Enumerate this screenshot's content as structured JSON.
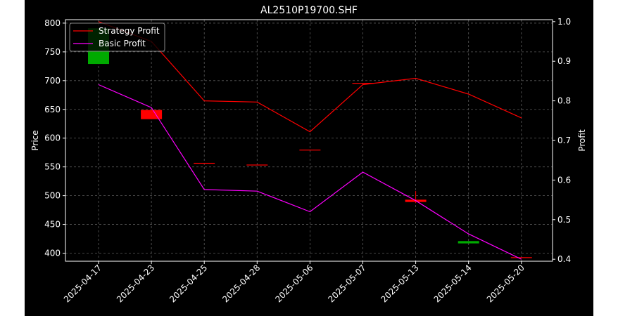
{
  "chart_data": {
    "type": "line",
    "title": "AL2510P19700.SHF",
    "xlabel": "",
    "ylabel": "Price",
    "y2label": "Profit",
    "categories": [
      "2025-04-17",
      "2025-04-23",
      "2025-04-25",
      "2025-04-28",
      "2025-05-06",
      "2025-05-07",
      "2025-05-13",
      "2025-05-14",
      "2025-05-20"
    ],
    "ylim": [
      386,
      806
    ],
    "y2lim": [
      0.395,
      1.005
    ],
    "yticks": [
      400,
      450,
      500,
      550,
      600,
      650,
      700,
      750,
      800
    ],
    "y2ticks": [
      "0.4",
      "0.5",
      "0.6",
      "0.7",
      "0.8",
      "0.9",
      "1.0"
    ],
    "grid": true,
    "legend_position": "top-left",
    "candles": [
      {
        "date": "2025-04-17",
        "open": 729,
        "close": 791,
        "high": 791,
        "low": 729,
        "color": "#00aa00"
      },
      {
        "date": "2025-04-23",
        "open": 649,
        "close": 633,
        "high": 649,
        "low": 633,
        "color": "#ff0000"
      },
      {
        "date": "2025-04-25",
        "open": 557,
        "close": 557,
        "high": 557,
        "low": 557,
        "color": "#ff0000"
      },
      {
        "date": "2025-04-28",
        "open": 554,
        "close": 554,
        "high": 554,
        "low": 554,
        "color": "#ff0000"
      },
      {
        "date": "2025-05-06",
        "open": 580,
        "close": 580,
        "high": 580,
        "low": 580,
        "color": "#ff0000"
      },
      {
        "date": "2025-05-07",
        "open": 696,
        "close": 696,
        "high": 696,
        "low": 696,
        "color": "#ff0000"
      },
      {
        "date": "2025-05-13",
        "open": 493,
        "close": 489,
        "high": 508,
        "low": 487,
        "color": "#ff0000"
      },
      {
        "date": "2025-05-14",
        "open": 417,
        "close": 421,
        "high": 421,
        "low": 417,
        "color": "#00aa00"
      },
      {
        "date": "2025-05-20",
        "open": 393,
        "close": 393,
        "high": 393,
        "low": 393,
        "color": "#ff0000"
      }
    ],
    "series": [
      {
        "name": "Strategy Profit",
        "color": "#ff0000",
        "values": [
          1.0,
          0.95,
          0.8,
          0.797,
          0.722,
          0.841,
          0.857,
          0.817,
          0.757
        ]
      },
      {
        "name": "Basic Profit",
        "color": "#ff00ff",
        "values": [
          0.841,
          0.783,
          0.576,
          0.572,
          0.52,
          0.62,
          0.548,
          0.464,
          0.4
        ]
      }
    ]
  }
}
